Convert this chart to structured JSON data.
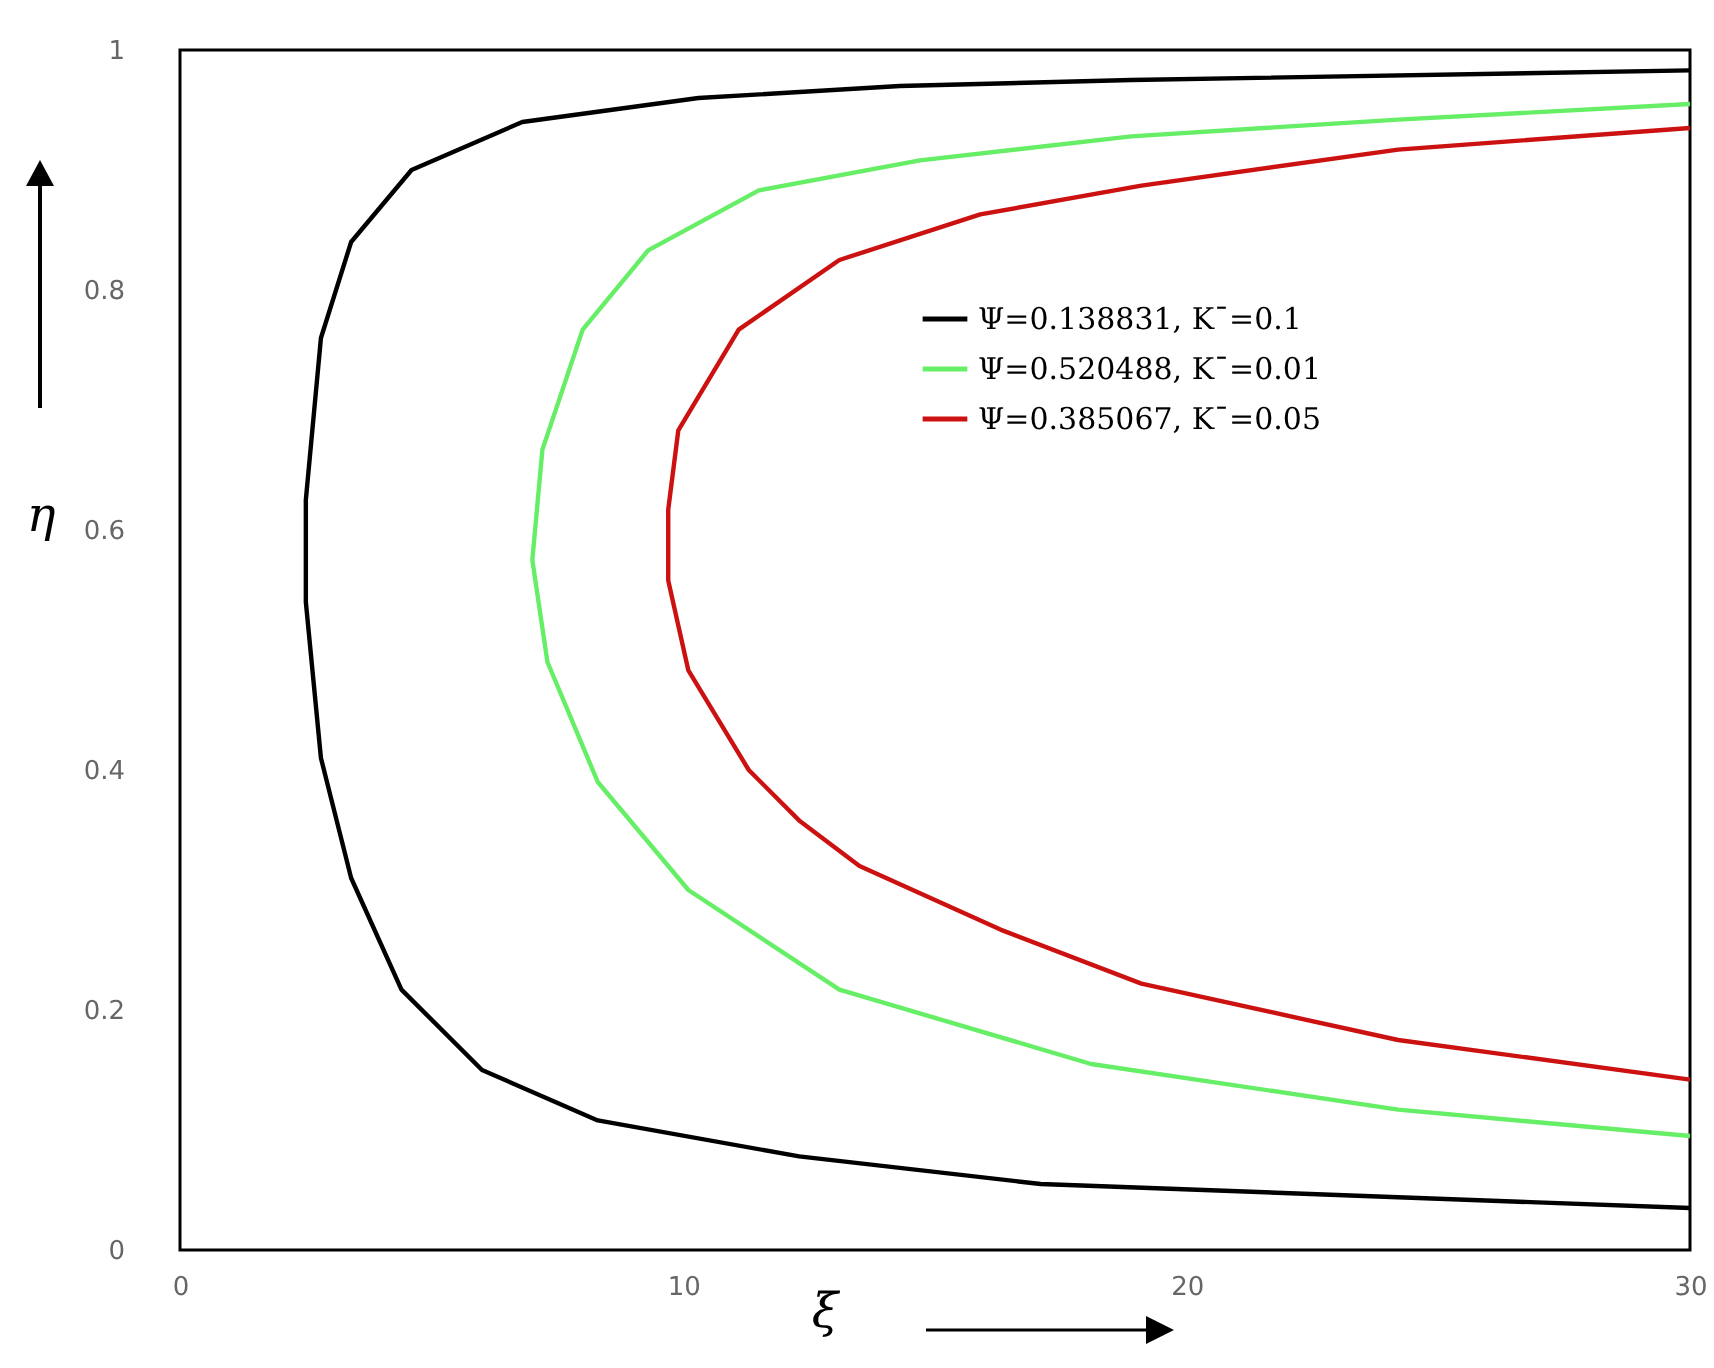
{
  "chart_data": {
    "type": "line",
    "xlabel": "ξ",
    "ylabel": "η",
    "xlim": [
      0,
      30
    ],
    "xticks": [
      0,
      10,
      20,
      30
    ],
    "ylim": [
      0,
      1
    ],
    "yticks": [
      {
        "value": 0,
        "label": "0"
      },
      0.2,
      0.4,
      0.6,
      0.8,
      {
        "value": 1,
        "label": "1"
      }
    ],
    "grid": false,
    "legend": "top right",
    "marker": "none",
    "line_style": "solid",
    "series": [
      {
        "name": "Ψ=0.138831,  K¯=0.1",
        "color": "#000000",
        "x": [
          30,
          17.1,
          12.3,
          8.3,
          6.0,
          4.4,
          3.4,
          2.8,
          2.5,
          2.5,
          2.8,
          3.4,
          4.6,
          6.8,
          10.3,
          14.3,
          18.9,
          30
        ],
        "values": [
          0.035,
          0.055,
          0.078,
          0.108,
          0.15,
          0.217,
          0.31,
          0.41,
          0.54,
          0.625,
          0.76,
          0.84,
          0.9,
          0.94,
          0.96,
          0.97,
          0.975,
          0.983
        ]
      },
      {
        "name": "Ψ=0.520488, K¯=0.01",
        "color": "#66ee66",
        "x": [
          30,
          24.2,
          18.1,
          13.1,
          10.1,
          8.3,
          7.3,
          7.0,
          7.2,
          8.0,
          9.3,
          11.5,
          14.7,
          18.9,
          24.2,
          30
        ],
        "values": [
          0.095,
          0.117,
          0.155,
          0.217,
          0.3,
          0.39,
          0.49,
          0.575,
          0.667,
          0.767,
          0.833,
          0.883,
          0.908,
          0.928,
          0.942,
          0.955
        ]
      },
      {
        "name": "Ψ=0.385067, K¯=0.05",
        "color": "#cc1111",
        "x": [
          30,
          24.2,
          19.1,
          16.3,
          13.5,
          12.3,
          11.3,
          10.1,
          9.7,
          9.7,
          9.9,
          11.1,
          13.1,
          15.9,
          19.1,
          24.2,
          30
        ],
        "values": [
          0.142,
          0.175,
          0.222,
          0.267,
          0.32,
          0.358,
          0.4,
          0.483,
          0.558,
          0.617,
          0.683,
          0.767,
          0.825,
          0.863,
          0.887,
          0.917,
          0.935
        ]
      }
    ]
  }
}
